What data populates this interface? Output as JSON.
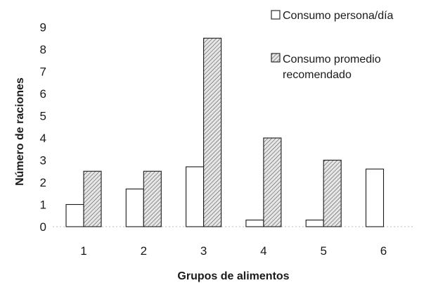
{
  "chart_data": {
    "type": "bar",
    "xlabel": "Grupos de alimentos",
    "ylabel": "Número de raciones",
    "ylim": [
      0,
      9
    ],
    "yticks": [
      0,
      1,
      2,
      3,
      4,
      5,
      6,
      7,
      8,
      9
    ],
    "categories": [
      "1",
      "2",
      "3",
      "4",
      "5",
      "6"
    ],
    "legend_position": "top-right",
    "series": [
      {
        "name": "Consumo persona/día",
        "values": [
          1.0,
          1.7,
          2.7,
          0.3,
          0.3,
          2.6
        ],
        "fill": "#ffffff",
        "pattern": "none"
      },
      {
        "name": "Consumo promedio recomendado",
        "name_lines": [
          "Consumo promedio",
          "recomendado"
        ],
        "values": [
          2.5,
          2.5,
          8.5,
          4.0,
          3.0,
          null
        ],
        "fill": "#e6e6e6",
        "pattern": "diagonal-hatch"
      }
    ]
  }
}
